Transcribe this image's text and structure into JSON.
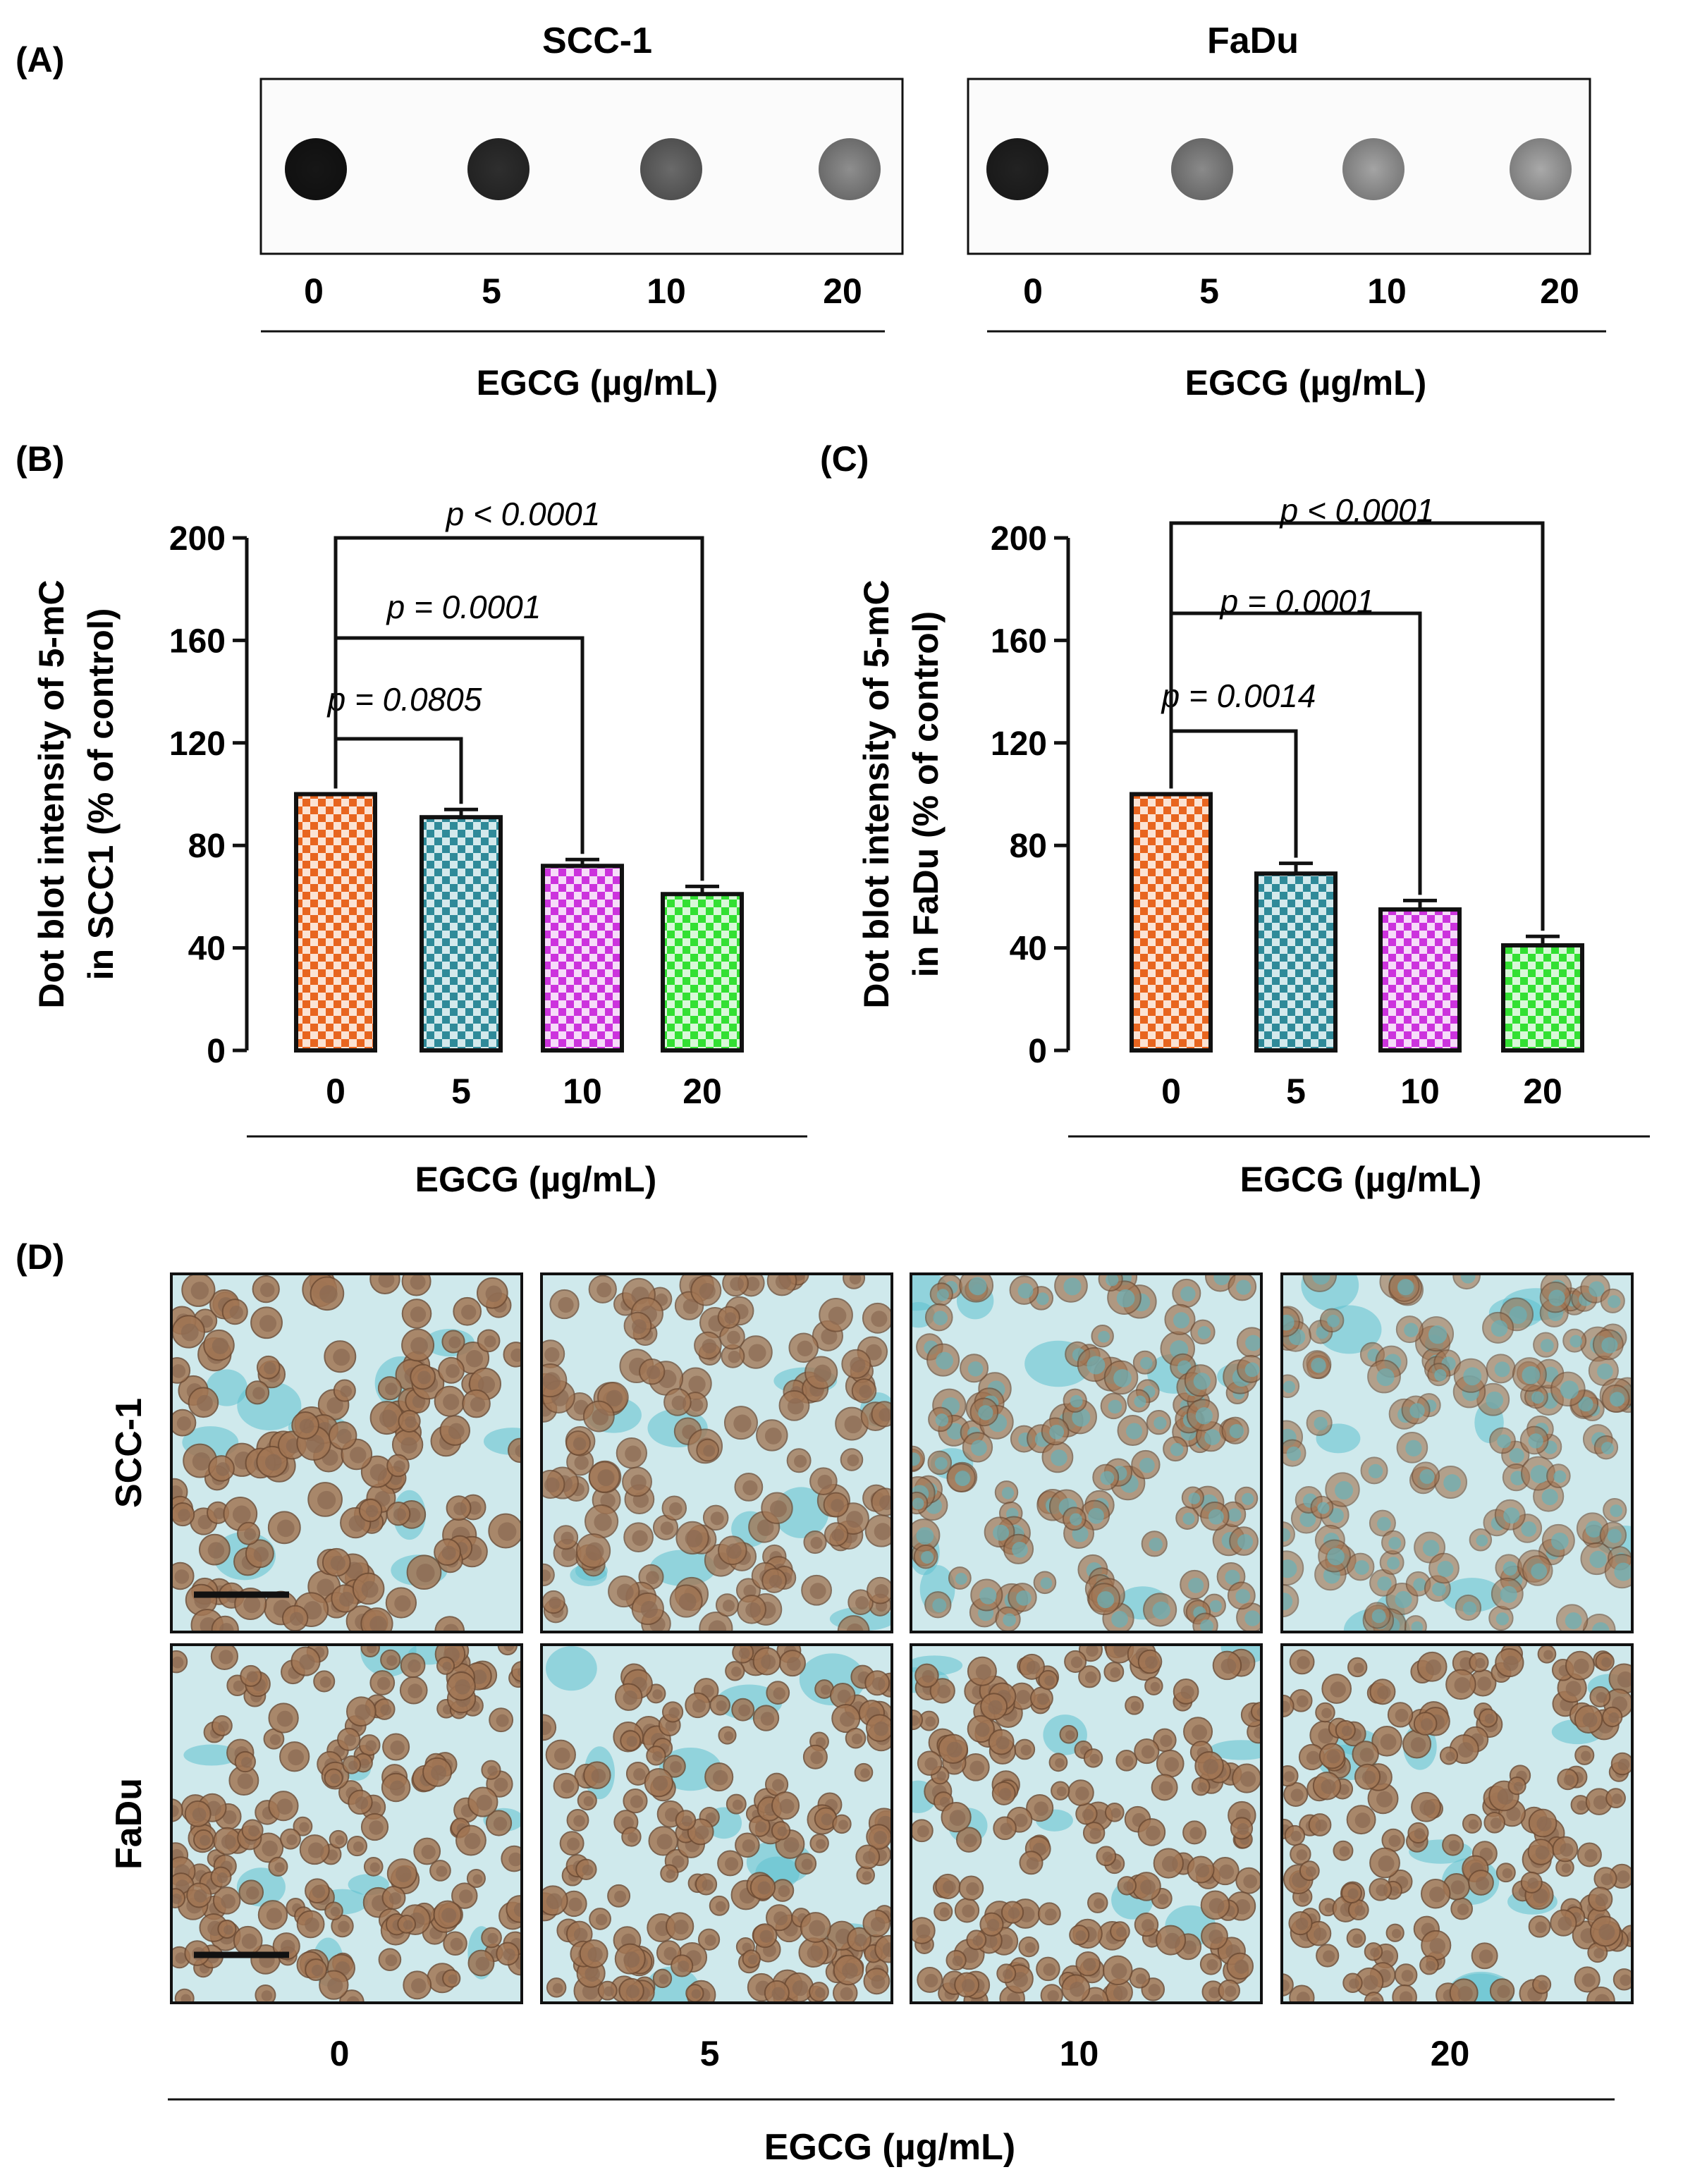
{
  "colors": {
    "orange": "#e8651f",
    "teal": "#2f8a99",
    "magenta": "#cc33dd",
    "green": "#33e033",
    "ink": "#111111",
    "stain_brown": "#a27654",
    "stain_blue": "#5fc1cf",
    "tissue_bg": "#cfe9ec"
  },
  "panel_labels": {
    "a": "(A)",
    "b": "(B)",
    "c": "(C)",
    "d": "(D)"
  },
  "dot_blot": {
    "x_axis_title": "EGCG (µg/mL)",
    "blots": [
      {
        "title": "SCC-1",
        "doses": [
          "0",
          "5",
          "10",
          "20"
        ],
        "dot_shades": [
          "#161616",
          "#2e2e2e",
          "#6a6a6a",
          "#8e8e8e"
        ]
      },
      {
        "title": "FaDu",
        "doses": [
          "0",
          "5",
          "10",
          "20"
        ],
        "dot_shades": [
          "#222222",
          "#8a8a8a",
          "#a4a4a4",
          "#a9a9a9"
        ]
      }
    ]
  },
  "chart_data": [
    {
      "panel": "(B)",
      "type": "bar",
      "categories": [
        "0",
        "5",
        "10",
        "20"
      ],
      "values": [
        100,
        91,
        72,
        61
      ],
      "errors": [
        0,
        3,
        2.5,
        3
      ],
      "bar_patterns": [
        "orange",
        "teal",
        "magenta",
        "green"
      ],
      "xlabel": "EGCG (µg/mL)",
      "ylabel_line1": "Dot blot intensity of 5-mC",
      "ylabel_line2": "in SCC1 (% of control)",
      "ylim": [
        0,
        200
      ],
      "yticks": [
        0,
        40,
        80,
        120,
        160,
        200
      ],
      "comparisons": [
        {
          "from": "0",
          "to": "5",
          "label": "p = 0.0805"
        },
        {
          "from": "0",
          "to": "10",
          "label": "p = 0.0001"
        },
        {
          "from": "0",
          "to": "20",
          "label": "p < 0.0001"
        }
      ]
    },
    {
      "panel": "(C)",
      "type": "bar",
      "categories": [
        "0",
        "5",
        "10",
        "20"
      ],
      "values": [
        100,
        69,
        55,
        41
      ],
      "errors": [
        0,
        4,
        3.5,
        3.5
      ],
      "bar_patterns": [
        "orange",
        "teal",
        "magenta",
        "green"
      ],
      "xlabel": "EGCG (µg/mL)",
      "ylabel_line1": "Dot blot intensity of 5-mC",
      "ylabel_line2": "in FaDu (% of control)",
      "ylim": [
        0,
        200
      ],
      "yticks": [
        0,
        40,
        80,
        120,
        160,
        200
      ],
      "comparisons": [
        {
          "from": "0",
          "to": "5",
          "label": "p = 0.0014"
        },
        {
          "from": "0",
          "to": "10",
          "label": "p = 0.0001"
        },
        {
          "from": "0",
          "to": "20",
          "label": "p < 0.0001"
        }
      ]
    }
  ],
  "ihc": {
    "rows": [
      "SCC-1",
      "FaDu"
    ],
    "doses": [
      "0",
      "5",
      "10",
      "20"
    ],
    "x_axis_title": "EGCG (µg/mL)"
  }
}
